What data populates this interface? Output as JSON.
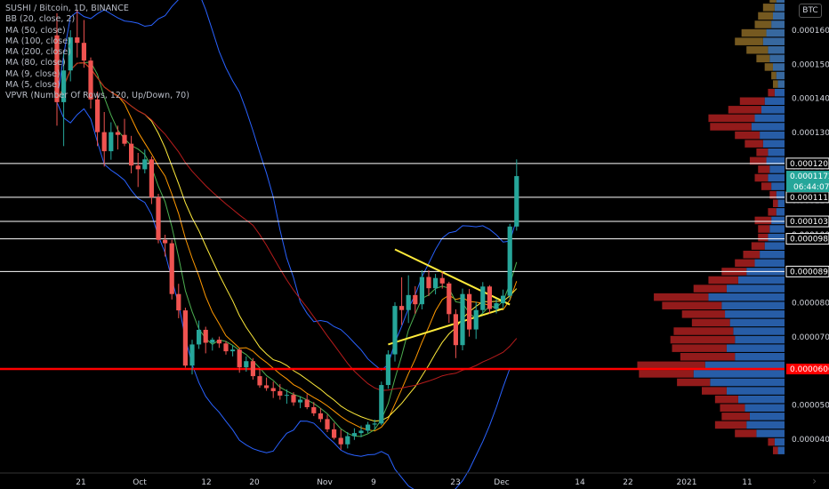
{
  "legend": {
    "title": "SUSHI / Bitcoin, 1D, BINANCE",
    "lines": [
      "BB (20, close, 2)",
      "MA (50, close)",
      "MA (100, close)",
      "MA (200, close)",
      "MA (80, close)",
      "MA (9, close)",
      "MA (5, close)",
      "VPVR (Number Of Rows, 120, Up/Down, 70)"
    ]
  },
  "currency_button": "BTC",
  "nav_arrow": "›",
  "colors": {
    "up": "#26a69a",
    "down": "#ef5350",
    "red_line": "#ff0000",
    "price_label": "#26a69a",
    "vp_up": "#2962b0",
    "vp_down": "#9b1c1c",
    "vp_up_va": "#3a6ea8",
    "vp_down_va": "#7b5e22"
  },
  "chart_data": {
    "type": "candlestick",
    "y_axis_ticks": [
      "0.0001600",
      "0.0001500",
      "0.0001400",
      "0.0001300",
      "0.0001200",
      "0.0001100",
      "0.0001000",
      "0.0000900",
      "0.0000800",
      "0.0000700",
      "0.0000600",
      "0.0000500",
      "0.0000400"
    ],
    "x_axis_ticks": [
      "21",
      "Oct",
      "12",
      "20",
      "Nov",
      "9",
      "23",
      "Dec",
      "14",
      "22",
      "2021",
      "11"
    ],
    "horizontal_lines": [
      {
        "label": "0.0001209",
        "value": 0.0001209,
        "color": "#ffffff"
      },
      {
        "label": "0.0001110",
        "value": 0.000111,
        "color": "#ffffff"
      },
      {
        "label": "0.0001039",
        "value": 0.0001039,
        "color": "#ffffff"
      },
      {
        "label": "0.0000988",
        "value": 9.88e-05,
        "color": "#ffffff"
      },
      {
        "label": "0.0000892",
        "value": 8.92e-05,
        "color": "#ffffff"
      },
      {
        "label": "0.0000606",
        "value": 6.06e-05,
        "color": "#ff0000"
      }
    ],
    "current_price_label": "0.0001172",
    "current_price_value": 0.0001172,
    "countdown_label": "06:44:07",
    "triangle_pattern": "yellow symmetrical triangle",
    "grid": false,
    "candles": [
      {
        "o": 0.0001585,
        "h": 0.000165,
        "l": 0.000132,
        "c": 0.0001389
      },
      {
        "o": 0.0001389,
        "h": 0.000154,
        "l": 0.000126,
        "c": 0.0001482
      },
      {
        "o": 0.0001482,
        "h": 0.00016,
        "l": 0.000145,
        "c": 0.0001579
      },
      {
        "o": 0.0001579,
        "h": 0.000166,
        "l": 0.000152,
        "c": 0.0001563
      },
      {
        "o": 0.0001563,
        "h": 0.000163,
        "l": 0.000149,
        "c": 0.0001511
      },
      {
        "o": 0.0001511,
        "h": 0.000152,
        "l": 0.000137,
        "c": 0.0001397
      },
      {
        "o": 0.0001397,
        "h": 0.000142,
        "l": 0.000126,
        "c": 0.0001301
      },
      {
        "o": 0.0001301,
        "h": 0.000136,
        "l": 0.00012,
        "c": 0.0001245
      },
      {
        "o": 0.0001245,
        "h": 0.000133,
        "l": 0.000122,
        "c": 0.0001301
      },
      {
        "o": 0.0001301,
        "h": 0.000132,
        "l": 0.000125,
        "c": 0.0001293
      },
      {
        "o": 0.0001293,
        "h": 0.000134,
        "l": 0.000126,
        "c": 0.0001267
      },
      {
        "o": 0.0001267,
        "h": 0.000129,
        "l": 0.000118,
        "c": 0.0001203
      },
      {
        "o": 0.0001203,
        "h": 0.000124,
        "l": 0.000114,
        "c": 0.0001192
      },
      {
        "o": 0.0001192,
        "h": 0.000125,
        "l": 0.000118,
        "c": 0.0001221
      },
      {
        "o": 0.0001221,
        "h": 0.000123,
        "l": 0.000109,
        "c": 0.000111
      },
      {
        "o": 0.000111,
        "h": 0.000112,
        "l": 9.75e-05,
        "c": 9.85e-05
      },
      {
        "o": 9.85e-05,
        "h": 0.0001,
        "l": 9.36e-05,
        "c": 9.75e-05
      },
      {
        "o": 9.75e-05,
        "h": 9.85e-05,
        "l": 8.1e-05,
        "c": 8.26e-05
      },
      {
        "o": 8.26e-05,
        "h": 8.56e-05,
        "l": 7.55e-05,
        "c": 7.78e-05
      },
      {
        "o": 7.78e-05,
        "h": 7.86e-05,
        "l": 6.1e-05,
        "c": 6.16e-05
      },
      {
        "o": 6.16e-05,
        "h": 6.92e-05,
        "l": 5.9e-05,
        "c": 6.78e-05
      },
      {
        "o": 6.78e-05,
        "h": 7.48e-05,
        "l": 6.65e-05,
        "c": 7.21e-05
      },
      {
        "o": 7.21e-05,
        "h": 7.3e-05,
        "l": 6.52e-05,
        "c": 6.83e-05
      },
      {
        "o": 6.83e-05,
        "h": 6.98e-05,
        "l": 6.6e-05,
        "c": 6.92e-05
      },
      {
        "o": 6.92e-05,
        "h": 7.01e-05,
        "l": 6.68e-05,
        "c": 6.81e-05
      },
      {
        "o": 6.81e-05,
        "h": 6.88e-05,
        "l": 6.48e-05,
        "c": 6.58e-05
      },
      {
        "o": 6.58e-05,
        "h": 6.75e-05,
        "l": 6.43e-05,
        "c": 6.63e-05
      },
      {
        "o": 6.63e-05,
        "h": 6.67e-05,
        "l": 5.95e-05,
        "c": 6.11e-05
      },
      {
        "o": 6.11e-05,
        "h": 6.43e-05,
        "l": 5.98e-05,
        "c": 6.29e-05
      },
      {
        "o": 6.29e-05,
        "h": 6.38e-05,
        "l": 5.75e-05,
        "c": 5.85e-05
      },
      {
        "o": 5.85e-05,
        "h": 6.06e-05,
        "l": 5.51e-05,
        "c": 5.58e-05
      },
      {
        "o": 5.58e-05,
        "h": 5.81e-05,
        "l": 5.42e-05,
        "c": 5.5e-05
      },
      {
        "o": 5.5e-05,
        "h": 5.69e-05,
        "l": 5.21e-05,
        "c": 5.41e-05
      },
      {
        "o": 5.41e-05,
        "h": 5.62e-05,
        "l": 5.16e-05,
        "c": 5.28e-05
      },
      {
        "o": 5.28e-05,
        "h": 5.46e-05,
        "l": 5.04e-05,
        "c": 5.3e-05
      },
      {
        "o": 5.3e-05,
        "h": 5.38e-05,
        "l": 4.98e-05,
        "c": 5.08e-05
      },
      {
        "o": 5.08e-05,
        "h": 5.26e-05,
        "l": 4.91e-05,
        "c": 5.16e-05
      },
      {
        "o": 5.16e-05,
        "h": 5.32e-05,
        "l": 4.88e-05,
        "c": 4.94e-05
      },
      {
        "o": 4.94e-05,
        "h": 5.09e-05,
        "l": 4.68e-05,
        "c": 4.76e-05
      },
      {
        "o": 4.76e-05,
        "h": 4.91e-05,
        "l": 4.5e-05,
        "c": 4.59e-05
      },
      {
        "o": 4.59e-05,
        "h": 4.72e-05,
        "l": 4.21e-05,
        "c": 4.29e-05
      },
      {
        "o": 4.29e-05,
        "h": 4.48e-05,
        "l": 3.99e-05,
        "c": 4.04e-05
      },
      {
        "o": 4.04e-05,
        "h": 4.29e-05,
        "l": 3.69e-05,
        "c": 3.85e-05
      },
      {
        "o": 3.85e-05,
        "h": 4.21e-05,
        "l": 3.73e-05,
        "c": 4.09e-05
      },
      {
        "o": 4.09e-05,
        "h": 4.32e-05,
        "l": 3.98e-05,
        "c": 4.18e-05
      },
      {
        "o": 4.18e-05,
        "h": 4.4e-05,
        "l": 4.06e-05,
        "c": 4.25e-05
      },
      {
        "o": 4.25e-05,
        "h": 4.51e-05,
        "l": 4.18e-05,
        "c": 4.43e-05
      },
      {
        "o": 4.43e-05,
        "h": 4.58e-05,
        "l": 4.29e-05,
        "c": 4.46e-05
      },
      {
        "o": 4.46e-05,
        "h": 5.69e-05,
        "l": 4.41e-05,
        "c": 5.59e-05
      },
      {
        "o": 5.59e-05,
        "h": 6.61e-05,
        "l": 5.48e-05,
        "c": 6.49e-05
      },
      {
        "o": 6.49e-05,
        "h": 8.02e-05,
        "l": 6.28e-05,
        "c": 7.91e-05
      },
      {
        "o": 7.91e-05,
        "h": 8.75e-05,
        "l": 7.35e-05,
        "c": 7.79e-05
      },
      {
        "o": 7.79e-05,
        "h": 8.81e-05,
        "l": 7.41e-05,
        "c": 8.23e-05
      },
      {
        "o": 8.23e-05,
        "h": 8.49e-05,
        "l": 7.68e-05,
        "c": 7.96e-05
      },
      {
        "o": 7.96e-05,
        "h": 8.96e-05,
        "l": 7.81e-05,
        "c": 8.76e-05
      },
      {
        "o": 8.76e-05,
        "h": 8.96e-05,
        "l": 8.2e-05,
        "c": 8.43e-05
      },
      {
        "o": 8.43e-05,
        "h": 8.85e-05,
        "l": 8.25e-05,
        "c": 8.73e-05
      },
      {
        "o": 8.73e-05,
        "h": 8.91e-05,
        "l": 8.42e-05,
        "c": 8.57e-05
      },
      {
        "o": 8.57e-05,
        "h": 8.62e-05,
        "l": 7.41e-05,
        "c": 7.67e-05
      },
      {
        "o": 7.67e-05,
        "h": 7.81e-05,
        "l": 6.38e-05,
        "c": 6.76e-05
      },
      {
        "o": 6.76e-05,
        "h": 8.42e-05,
        "l": 6.61e-05,
        "c": 8.26e-05
      },
      {
        "o": 8.26e-05,
        "h": 8.41e-05,
        "l": 7.01e-05,
        "c": 7.22e-05
      },
      {
        "o": 7.22e-05,
        "h": 8.03e-05,
        "l": 6.94e-05,
        "c": 7.79e-05
      },
      {
        "o": 7.79e-05,
        "h": 8.61e-05,
        "l": 7.69e-05,
        "c": 8.48e-05
      },
      {
        "o": 8.48e-05,
        "h": 8.52e-05,
        "l": 7.68e-05,
        "c": 7.82e-05
      },
      {
        "o": 7.82e-05,
        "h": 8.12e-05,
        "l": 7.69e-05,
        "c": 7.99e-05
      },
      {
        "o": 7.99e-05,
        "h": 8.39e-05,
        "l": 7.86e-05,
        "c": 8.21e-05
      },
      {
        "o": 8.21e-05,
        "h": 0.0001032,
        "l": 8.11e-05,
        "c": 0.0001024
      },
      {
        "o": 0.0001024,
        "h": 0.0001221,
        "l": 0.0001012,
        "c": 0.0001172
      }
    ]
  },
  "volume_profile": {
    "note": "VPVR histogram on right; value area rows highlighted",
    "rows": [
      {
        "p": 0.000169,
        "up": 10,
        "down": 8,
        "va": true
      },
      {
        "p": 0.0001665,
        "up": 12,
        "down": 14,
        "va": true
      },
      {
        "p": 0.000164,
        "up": 14,
        "down": 18,
        "va": true
      },
      {
        "p": 0.0001615,
        "up": 16,
        "down": 20,
        "va": true
      },
      {
        "p": 0.000159,
        "up": 22,
        "down": 30,
        "va": true
      },
      {
        "p": 0.0001565,
        "up": 26,
        "down": 34,
        "va": true
      },
      {
        "p": 0.000154,
        "up": 20,
        "down": 26,
        "va": true
      },
      {
        "p": 0.0001515,
        "up": 18,
        "down": 16,
        "va": true
      },
      {
        "p": 0.000149,
        "up": 14,
        "down": 10,
        "va": true
      },
      {
        "p": 0.0001465,
        "up": 10,
        "down": 6,
        "va": true
      },
      {
        "p": 0.000144,
        "up": 8,
        "down": 6,
        "va": true
      },
      {
        "p": 0.0001415,
        "up": 12,
        "down": 8,
        "va": false
      },
      {
        "p": 0.000139,
        "up": 24,
        "down": 30,
        "va": false
      },
      {
        "p": 0.0001365,
        "up": 28,
        "down": 40,
        "va": false
      },
      {
        "p": 0.000134,
        "up": 36,
        "down": 56,
        "va": false
      },
      {
        "p": 0.0001315,
        "up": 40,
        "down": 50,
        "va": false
      },
      {
        "p": 0.000129,
        "up": 30,
        "down": 30,
        "va": false
      },
      {
        "p": 0.0001265,
        "up": 26,
        "down": 22,
        "va": false
      },
      {
        "p": 0.000124,
        "up": 20,
        "down": 14,
        "va": false
      },
      {
        "p": 0.0001215,
        "up": 22,
        "down": 20,
        "va": false
      },
      {
        "p": 0.000119,
        "up": 18,
        "down": 14,
        "va": false
      },
      {
        "p": 0.0001165,
        "up": 20,
        "down": 16,
        "va": false
      },
      {
        "p": 0.000114,
        "up": 16,
        "down": 12,
        "va": false
      },
      {
        "p": 0.0001115,
        "up": 10,
        "down": 8,
        "va": false
      },
      {
        "p": 0.000109,
        "up": 8,
        "down": 6,
        "va": false
      },
      {
        "p": 0.0001065,
        "up": 10,
        "down": 10,
        "va": false
      },
      {
        "p": 0.000104,
        "up": 16,
        "down": 20,
        "va": false
      },
      {
        "p": 0.0001015,
        "up": 18,
        "down": 14,
        "va": false
      },
      {
        "p": 9.9e-05,
        "up": 20,
        "down": 12,
        "va": false
      },
      {
        "p": 9.65e-05,
        "up": 24,
        "down": 16,
        "va": false
      },
      {
        "p": 9.4e-05,
        "up": 30,
        "down": 20,
        "va": false
      },
      {
        "p": 9.15e-05,
        "up": 36,
        "down": 24,
        "va": false
      },
      {
        "p": 8.9e-05,
        "up": 46,
        "down": 30,
        "va": false
      },
      {
        "p": 8.65e-05,
        "up": 56,
        "down": 36,
        "va": false
      },
      {
        "p": 8.4e-05,
        "up": 70,
        "down": 40,
        "va": false
      },
      {
        "p": 8.15e-05,
        "up": 92,
        "down": 66,
        "va": false
      },
      {
        "p": 7.9e-05,
        "up": 76,
        "down": 72,
        "va": false
      },
      {
        "p": 7.65e-05,
        "up": 72,
        "down": 52,
        "va": false
      },
      {
        "p": 7.4e-05,
        "up": 66,
        "down": 46,
        "va": false
      },
      {
        "p": 7.15e-05,
        "up": 62,
        "down": 72,
        "va": false
      },
      {
        "p": 6.9e-05,
        "up": 60,
        "down": 78,
        "va": false
      },
      {
        "p": 6.65e-05,
        "up": 70,
        "down": 66,
        "va": false
      },
      {
        "p": 6.4e-05,
        "up": 60,
        "down": 66,
        "va": false
      },
      {
        "p": 6.15e-05,
        "up": 96,
        "down": 82,
        "va": false
      },
      {
        "p": 5.9e-05,
        "up": 110,
        "down": 66,
        "va": false
      },
      {
        "p": 5.65e-05,
        "up": 90,
        "down": 40,
        "va": false
      },
      {
        "p": 5.4e-05,
        "up": 70,
        "down": 30,
        "va": false
      },
      {
        "p": 5.15e-05,
        "up": 56,
        "down": 28,
        "va": false
      },
      {
        "p": 4.9e-05,
        "up": 48,
        "down": 30,
        "va": false
      },
      {
        "p": 4.65e-05,
        "up": 42,
        "down": 34,
        "va": false
      },
      {
        "p": 4.4e-05,
        "up": 46,
        "down": 38,
        "va": false
      },
      {
        "p": 4.15e-05,
        "up": 34,
        "down": 26,
        "va": false
      },
      {
        "p": 3.9e-05,
        "up": 12,
        "down": 8,
        "va": false
      },
      {
        "p": 3.65e-05,
        "up": 8,
        "down": 6,
        "va": false
      }
    ]
  }
}
